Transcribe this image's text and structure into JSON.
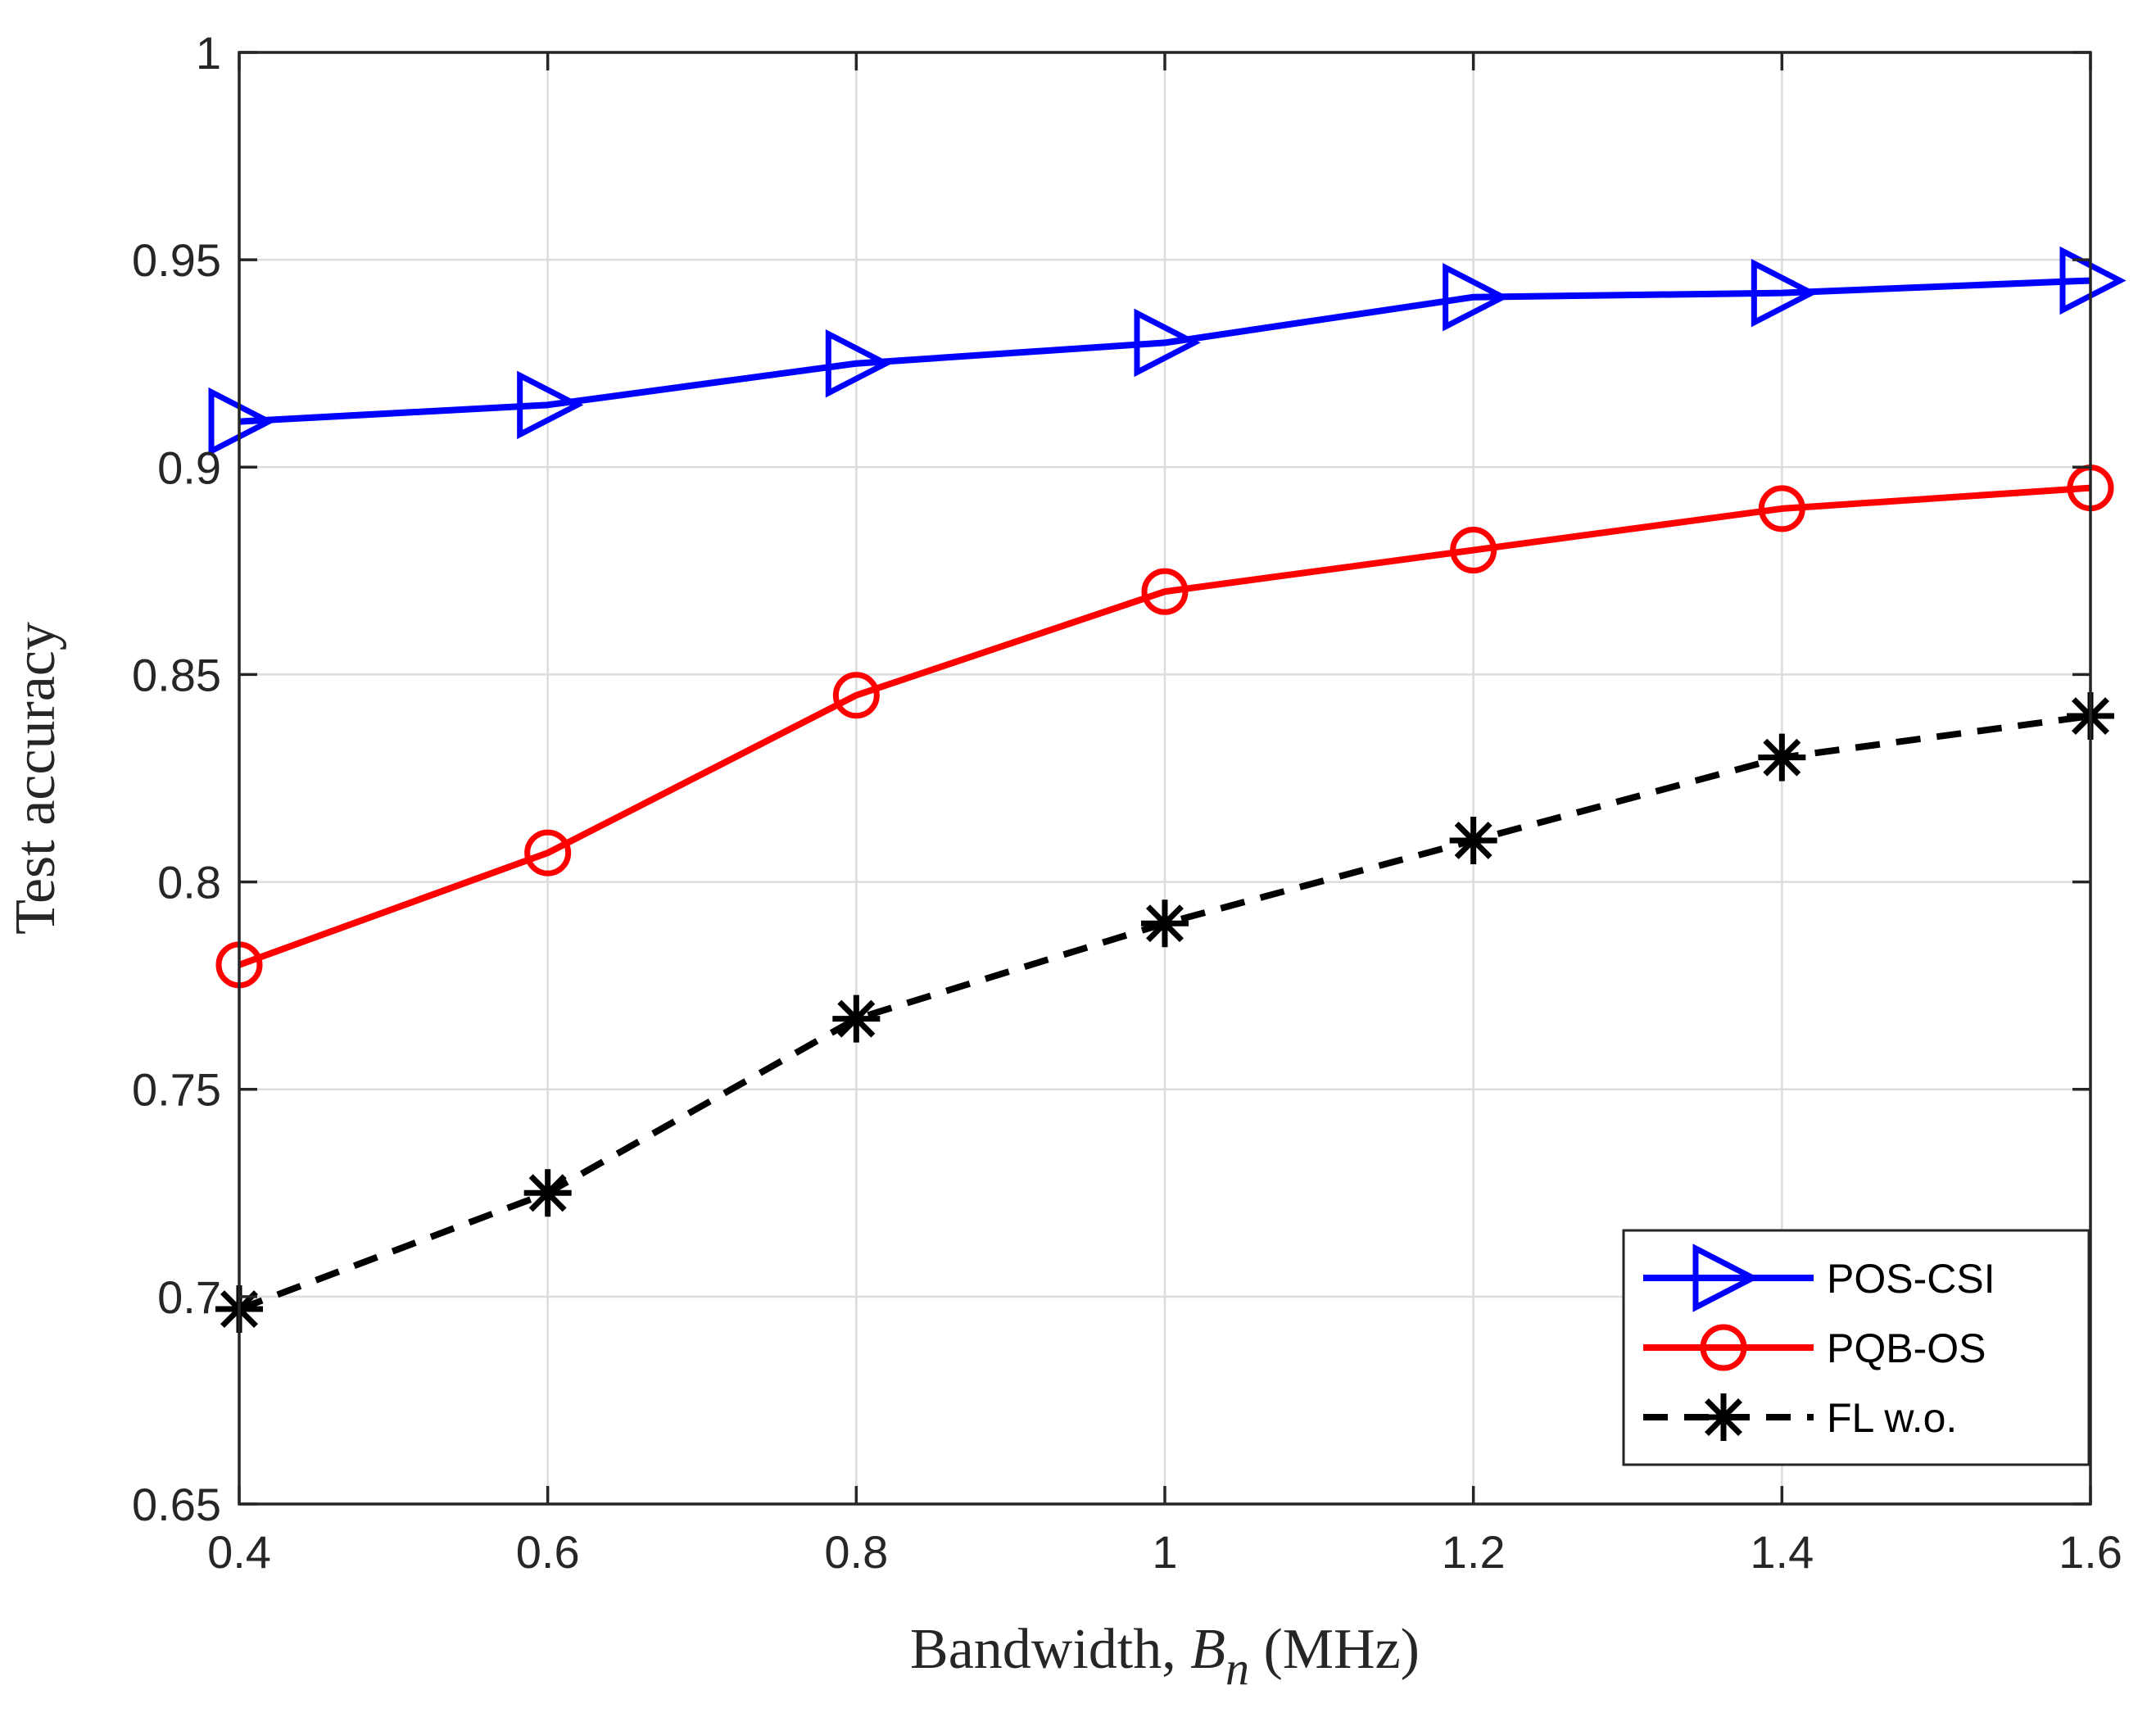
{
  "chart_data": {
    "type": "line",
    "xlabel": "Bandwidth, ",
    "xlabel_var": "B",
    "xlabel_sub": "n",
    "xlabel_unit": " (MHz)",
    "ylabel": "Test accuracy",
    "xlim": [
      0.4,
      1.6
    ],
    "ylim": [
      0.65,
      1.0
    ],
    "xticks": [
      0.4,
      0.6,
      0.8,
      1.0,
      1.2,
      1.4,
      1.6
    ],
    "xtick_labels": [
      "0.4",
      "0.6",
      "0.8",
      "1",
      "1.2",
      "1.4",
      "1.6"
    ],
    "yticks": [
      0.65,
      0.7,
      0.75,
      0.8,
      0.85,
      0.9,
      0.95,
      1.0
    ],
    "ytick_labels": [
      "0.65",
      "0.7",
      "0.75",
      "0.8",
      "0.85",
      "0.9",
      "0.95",
      "1"
    ],
    "grid": true,
    "legend_position": "bottom-right",
    "x": [
      0.4,
      0.6,
      0.8,
      1.0,
      1.2,
      1.4,
      1.6
    ],
    "series": [
      {
        "name": "POS-CSI",
        "color": "#0000ff",
        "marker": "triangle-right",
        "line": "solid",
        "values": [
          0.911,
          0.915,
          0.925,
          0.93,
          0.941,
          0.942,
          0.945
        ]
      },
      {
        "name": "PQB-OS",
        "color": "#ff0000",
        "marker": "circle",
        "line": "solid",
        "values": [
          0.78,
          0.807,
          0.845,
          0.87,
          0.88,
          0.89,
          0.895
        ]
      },
      {
        "name": "FL w.o.",
        "color": "#000000",
        "marker": "asterisk",
        "line": "dashed",
        "values": [
          0.697,
          0.725,
          0.767,
          0.79,
          0.81,
          0.83,
          0.84
        ]
      }
    ]
  }
}
